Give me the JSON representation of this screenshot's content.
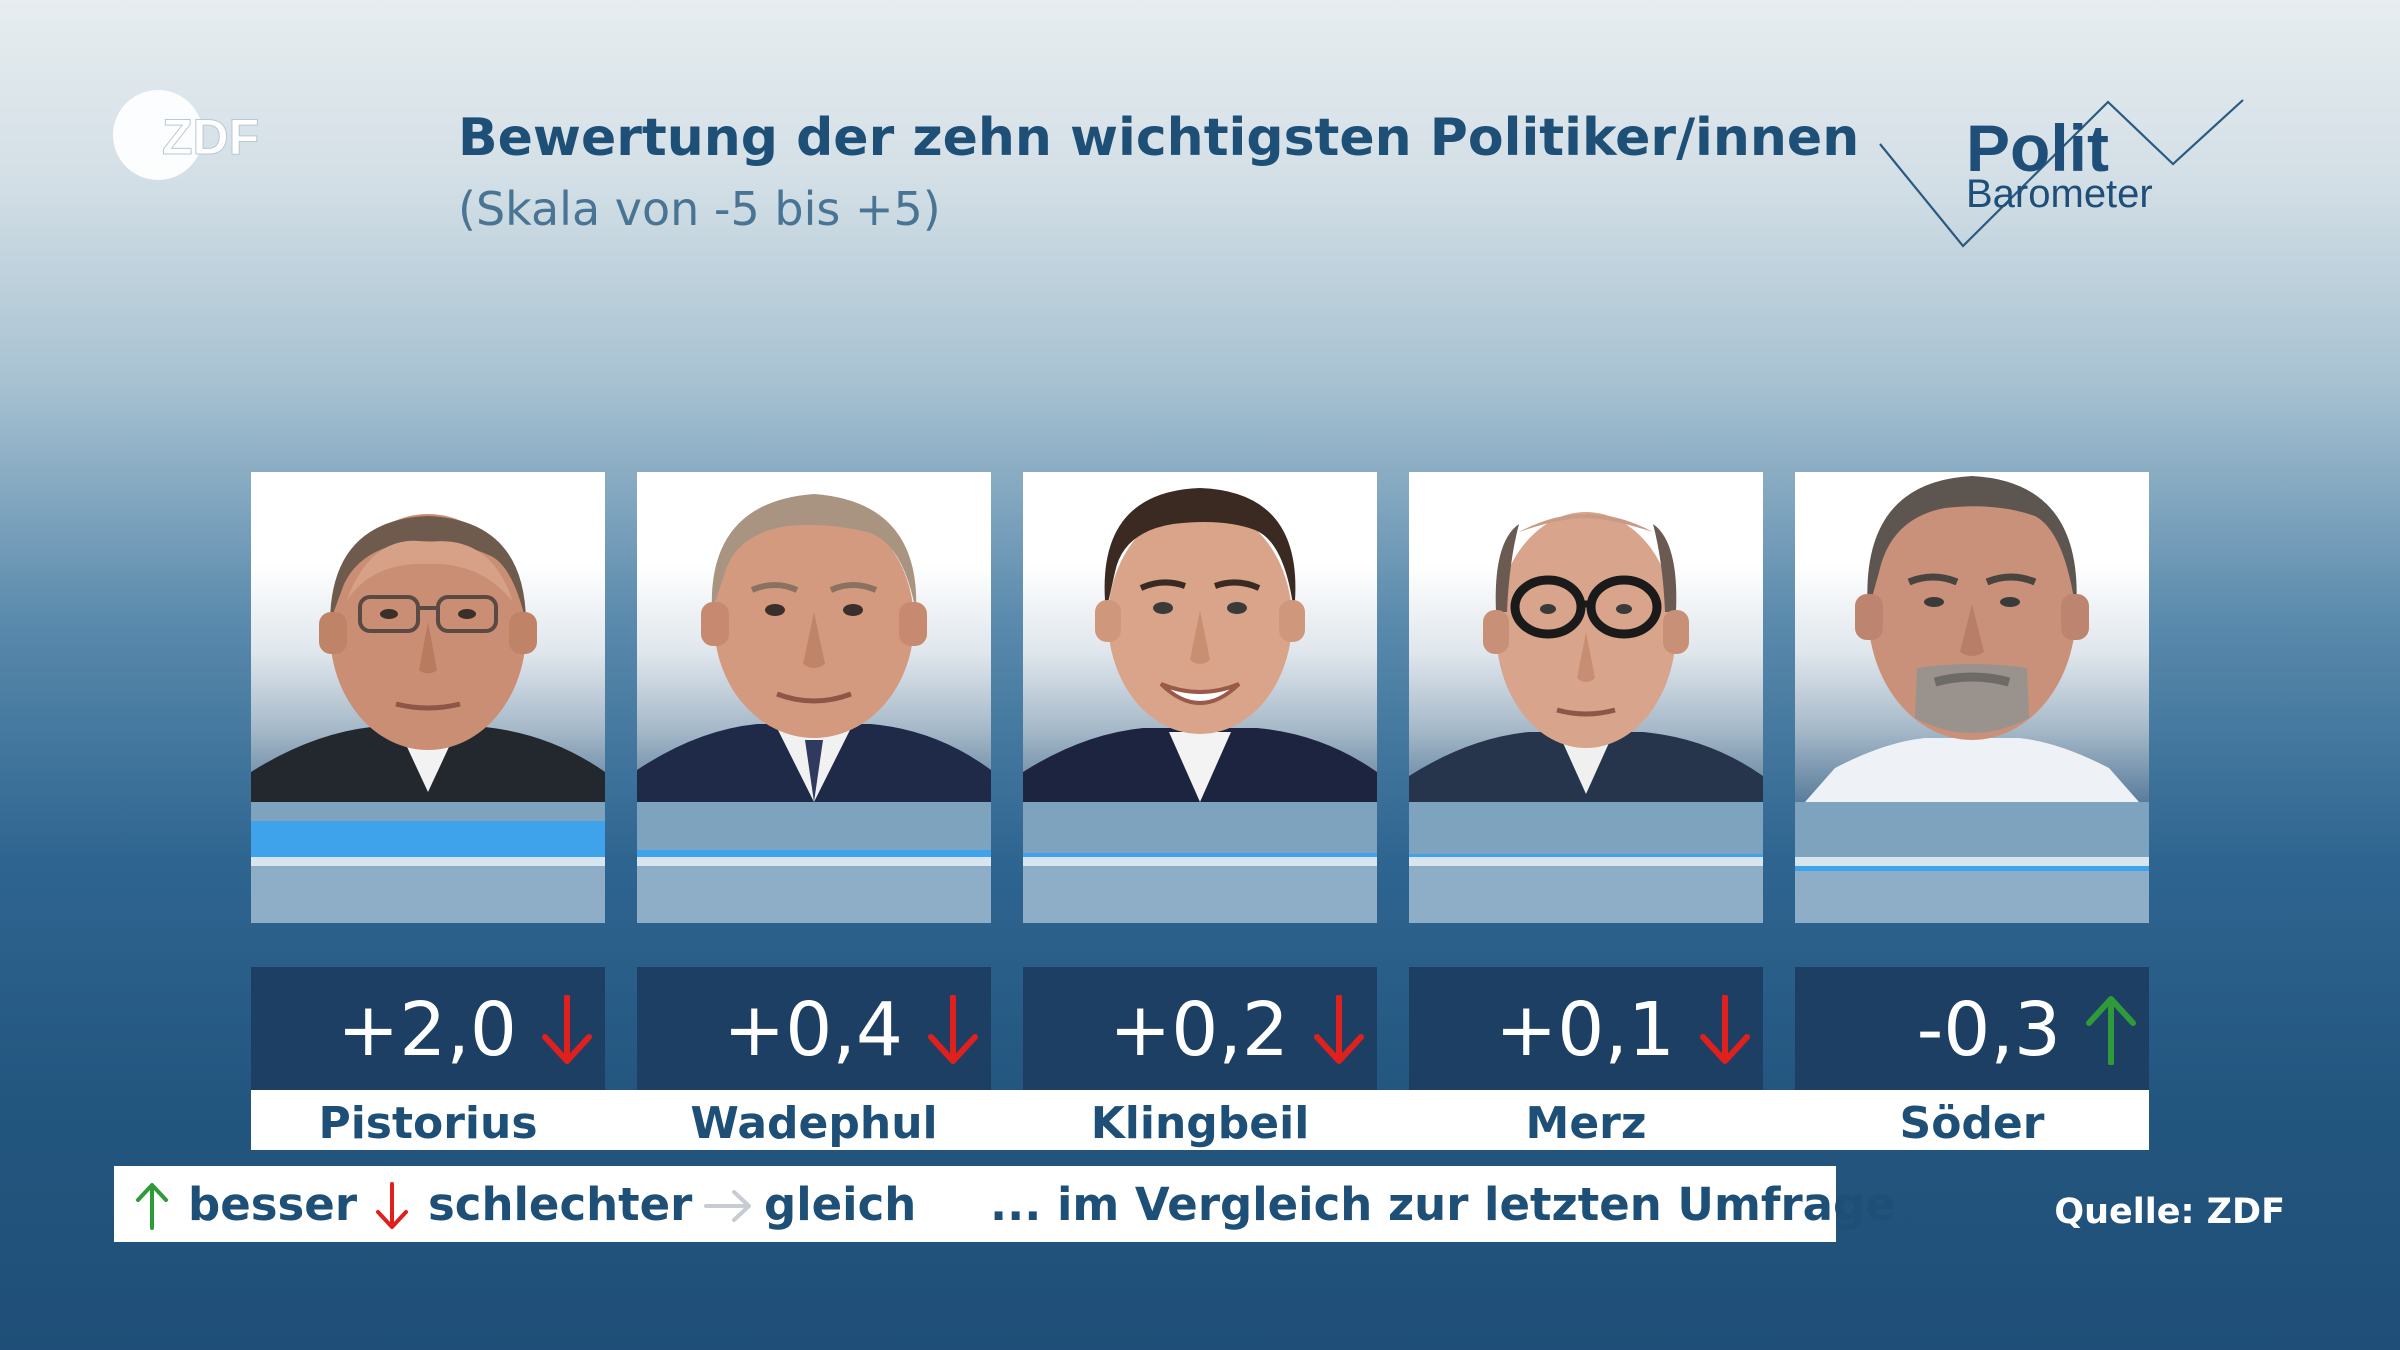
{
  "branding": {
    "broadcaster_logo_text": "ZDF",
    "product_logo_line1": "Polit",
    "product_logo_line2": "Barometer"
  },
  "header": {
    "title": "Bewertung der zehn wichtigsten Politiker/innen",
    "subtitle": "(Skala von -5 bis +5)"
  },
  "chart_data": {
    "type": "bar",
    "title": "Bewertung der zehn wichtigsten Politiker/innen",
    "subtitle": "(Skala von -5 bis +5)",
    "ylim": [
      -5,
      5
    ],
    "categories": [
      "Pistorius",
      "Wadephul",
      "Klingbeil",
      "Merz",
      "Söder"
    ],
    "values": [
      2.0,
      0.4,
      0.2,
      0.1,
      -0.3
    ],
    "value_labels": [
      "+2,0",
      "+0,4",
      "+0,2",
      "+0,1",
      "-0,3"
    ],
    "trends": [
      "down",
      "down",
      "down",
      "down",
      "up"
    ],
    "colors": {
      "bar": "#3ea3ea",
      "up": "#2e9a3a",
      "down": "#e0201c",
      "same": "#c7ccd2"
    }
  },
  "legend": {
    "besser": "besser",
    "schlechter": "schlechter",
    "gleich": "gleich",
    "note": "... im Vergleich zur letzten Umfrage"
  },
  "source": "Quelle: ZDF"
}
